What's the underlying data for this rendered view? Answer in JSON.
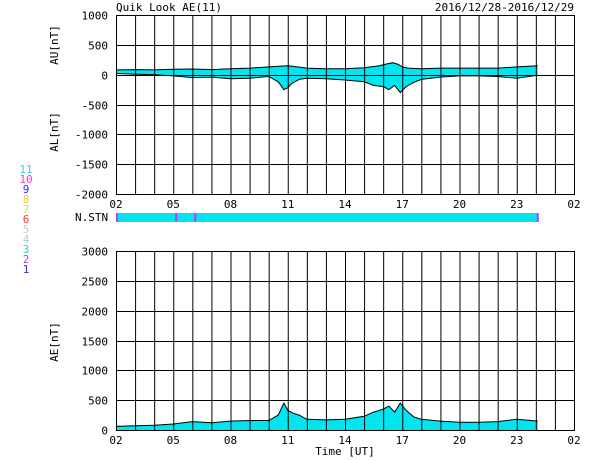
{
  "header": {
    "title": "Quik Look AE(11)",
    "date_range": "2016/12/28-2016/12/29"
  },
  "x_tick_labels": [
    "02",
    "05",
    "08",
    "11",
    "14",
    "17",
    "20",
    "23",
    "02"
  ],
  "x_axis_label": "Time [UT]",
  "colors": {
    "fill": "#00e5ef",
    "line": "#000000",
    "grid": "#000000"
  },
  "station_legend": [
    {
      "num": "11",
      "color": "#33ccff"
    },
    {
      "num": "10",
      "color": "#ff33cc"
    },
    {
      "num": "9",
      "color": "#3333ff"
    },
    {
      "num": "8",
      "color": "#ffcc33"
    },
    {
      "num": "7",
      "color": "#99ff33"
    },
    {
      "num": "6",
      "color": "#ff3333"
    },
    {
      "num": "5",
      "color": "#cccccc"
    },
    {
      "num": "4",
      "color": "#99ccff"
    },
    {
      "num": "3",
      "color": "#33cccc"
    },
    {
      "num": "2",
      "color": "#cc33ff"
    },
    {
      "num": "1",
      "color": "#3333cc"
    }
  ],
  "stn": {
    "label": "N.STN",
    "bar_color": "#00e5ef",
    "marker_color": "#cc33ff",
    "value": 11,
    "markers_hours": [
      2.0,
      5.1,
      6.1,
      24.05
    ]
  },
  "chart_data": [
    {
      "type": "area",
      "name": "AU/AL",
      "ylabels": [
        "AU[nT]",
        "AL[nT]"
      ],
      "ylim": [
        -2000,
        1000
      ],
      "yticks": [
        1000,
        500,
        0,
        -500,
        -1000,
        -1500,
        -2000
      ],
      "xlim": [
        2,
        26
      ],
      "xticks_hours": [
        2,
        5,
        8,
        11,
        14,
        17,
        20,
        23,
        26
      ],
      "data_end_hour": 24.1,
      "series": [
        {
          "name": "AU",
          "x": [
            2.0,
            3.0,
            4.0,
            5.0,
            6.0,
            7.0,
            8.0,
            9.0,
            10.0,
            10.5,
            11.0,
            11.5,
            12.0,
            13.0,
            14.0,
            15.0,
            15.8,
            16.2,
            16.5,
            16.8,
            17.0,
            17.3,
            18.0,
            19.0,
            20.0,
            21.0,
            22.0,
            23.0,
            24.1
          ],
          "y": [
            80,
            85,
            80,
            90,
            95,
            85,
            100,
            110,
            130,
            140,
            150,
            130,
            110,
            100,
            100,
            115,
            150,
            180,
            200,
            170,
            130,
            110,
            100,
            110,
            110,
            110,
            110,
            130,
            150
          ]
        },
        {
          "name": "AL",
          "x": [
            2.0,
            3.0,
            4.0,
            5.0,
            6.0,
            7.0,
            8.0,
            9.0,
            10.0,
            10.5,
            10.8,
            11.0,
            11.2,
            11.6,
            12.0,
            13.0,
            14.0,
            15.0,
            15.5,
            16.0,
            16.3,
            16.6,
            16.9,
            17.2,
            17.6,
            18.0,
            19.0,
            20.0,
            21.0,
            22.0,
            23.0,
            24.1
          ],
          "y": [
            20,
            10,
            0,
            -20,
            -50,
            -40,
            -70,
            -60,
            -30,
            -120,
            -250,
            -220,
            -150,
            -80,
            -60,
            -70,
            -90,
            -120,
            -180,
            -200,
            -250,
            -180,
            -300,
            -200,
            -130,
            -80,
            -40,
            -20,
            -20,
            -30,
            -60,
            -10
          ]
        }
      ]
    },
    {
      "type": "area",
      "name": "AE",
      "ylabel": "AE[nT]",
      "ylim": [
        0,
        3000
      ],
      "yticks": [
        3000,
        2500,
        2000,
        1500,
        1000,
        500,
        0
      ],
      "xlim": [
        2,
        26
      ],
      "xticks_hours": [
        2,
        5,
        8,
        11,
        14,
        17,
        20,
        23,
        26
      ],
      "data_end_hour": 24.1,
      "series": [
        {
          "name": "AE",
          "x": [
            2.0,
            3.0,
            4.0,
            5.0,
            6.0,
            7.0,
            8.0,
            9.0,
            10.0,
            10.5,
            10.8,
            11.0,
            11.3,
            11.6,
            12.0,
            13.0,
            14.0,
            15.0,
            15.5,
            16.0,
            16.3,
            16.6,
            16.9,
            17.2,
            17.6,
            18.0,
            19.0,
            20.0,
            21.0,
            22.0,
            23.0,
            24.1
          ],
          "y": [
            60,
            70,
            80,
            100,
            140,
            120,
            150,
            160,
            160,
            250,
            450,
            330,
            280,
            250,
            180,
            170,
            180,
            230,
            300,
            350,
            400,
            300,
            450,
            330,
            220,
            180,
            150,
            130,
            130,
            140,
            180,
            150
          ]
        }
      ]
    }
  ]
}
